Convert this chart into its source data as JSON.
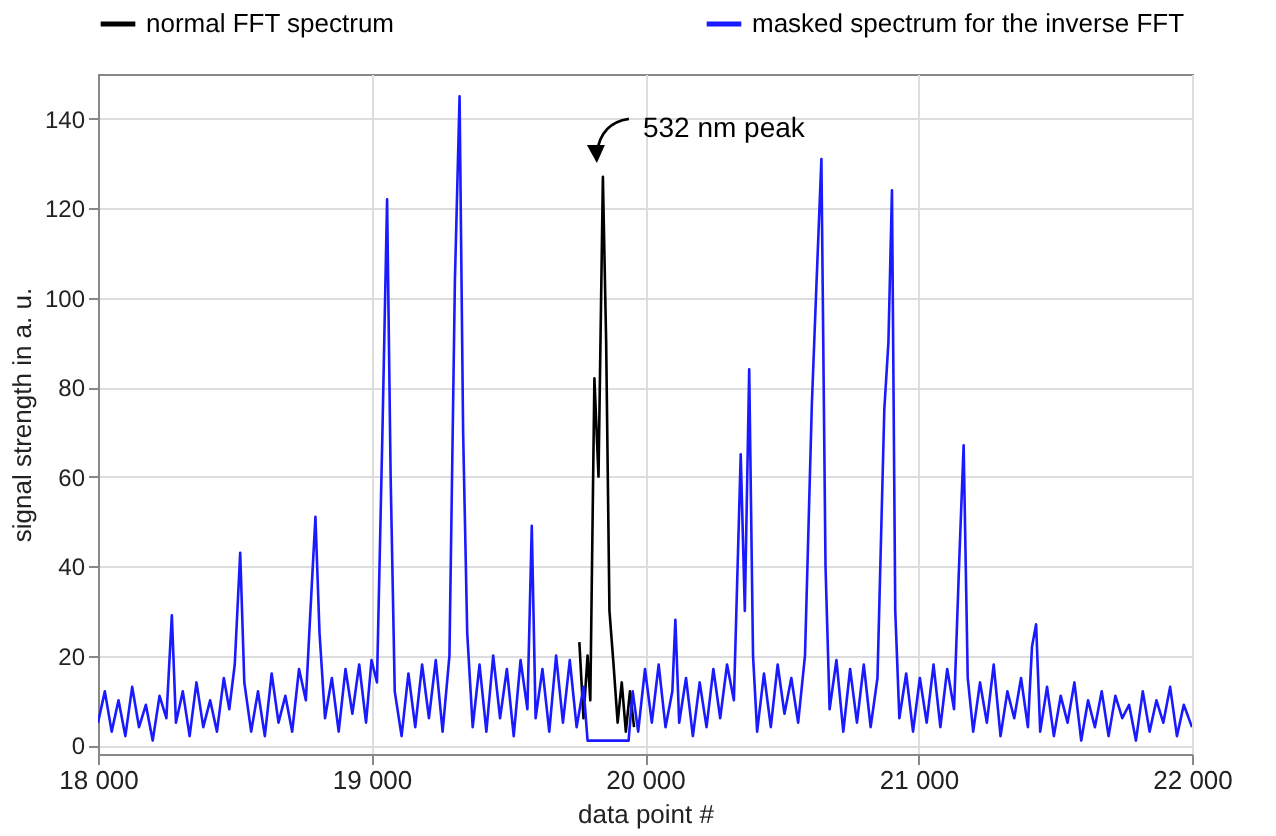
{
  "chart_data": {
    "type": "line",
    "xlabel": "data point #",
    "ylabel": "signal strength in a. u.",
    "xlim": [
      18000,
      22000
    ],
    "ylim": [
      -2,
      150
    ],
    "xticks": [
      {
        "value": 18000,
        "label": "18 000"
      },
      {
        "value": 19000,
        "label": "19 000"
      },
      {
        "value": 20000,
        "label": "20 000"
      },
      {
        "value": 21000,
        "label": "21 000"
      },
      {
        "value": 22000,
        "label": "22 000"
      }
    ],
    "yticks": [
      0,
      20,
      40,
      60,
      80,
      100,
      120,
      140
    ],
    "grid": true,
    "legend": "top",
    "line_style": "solid",
    "marker": "none",
    "annotations": [
      {
        "text": "532 nm peak",
        "x": 19846,
        "y": 127
      }
    ],
    "series": [
      {
        "name": "normal FFT spectrum",
        "color": "#000000",
        "x": [
          19760,
          19775,
          19790,
          19800,
          19815,
          19830,
          19846,
          19858,
          19870,
          19885,
          19900,
          19915,
          19930,
          19945,
          19960
        ],
        "values": [
          23,
          6,
          20,
          10,
          82,
          60,
          127,
          90,
          30,
          18,
          5,
          14,
          3,
          12,
          4
        ]
      },
      {
        "name": "masked spectrum for the inverse FFT",
        "color": "#1a1aff",
        "x": [
          18000,
          18025,
          18050,
          18075,
          18100,
          18125,
          18150,
          18175,
          18200,
          18225,
          18250,
          18270,
          18285,
          18310,
          18335,
          18360,
          18385,
          18410,
          18435,
          18460,
          18480,
          18500,
          18520,
          18535,
          18560,
          18585,
          18610,
          18635,
          18660,
          18685,
          18710,
          18735,
          18760,
          18775,
          18795,
          18810,
          18830,
          18855,
          18880,
          18905,
          18930,
          18955,
          18980,
          19000,
          19020,
          19040,
          19057,
          19070,
          19085,
          19110,
          19135,
          19160,
          19185,
          19210,
          19235,
          19260,
          19285,
          19305,
          19322,
          19335,
          19350,
          19370,
          19395,
          19420,
          19445,
          19470,
          19495,
          19520,
          19545,
          19570,
          19586,
          19600,
          19625,
          19650,
          19675,
          19700,
          19725,
          19750,
          19775,
          19790,
          19800,
          19850,
          19900,
          19940,
          19955,
          19975,
          20000,
          20025,
          20050,
          20075,
          20100,
          20111,
          20125,
          20150,
          20175,
          20200,
          20225,
          20250,
          20275,
          20300,
          20325,
          20350,
          20365,
          20381,
          20395,
          20410,
          20435,
          20460,
          20485,
          20510,
          20535,
          20560,
          20585,
          20610,
          20625,
          20645,
          20660,
          20675,
          20700,
          20725,
          20750,
          20775,
          20800,
          20825,
          20850,
          20875,
          20890,
          20903,
          20915,
          20930,
          20955,
          20980,
          21005,
          21030,
          21055,
          21080,
          21105,
          21130,
          21150,
          21165,
          21180,
          21200,
          21225,
          21250,
          21275,
          21300,
          21325,
          21350,
          21375,
          21400,
          21415,
          21430,
          21445,
          21470,
          21495,
          21520,
          21545,
          21570,
          21595,
          21620,
          21645,
          21670,
          21695,
          21720,
          21745,
          21770,
          21795,
          21820,
          21845,
          21870,
          21895,
          21920,
          21945,
          21970,
          22000
        ],
        "values": [
          5,
          12,
          3,
          10,
          2,
          13,
          4,
          9,
          1,
          11,
          6,
          29,
          5,
          12,
          2,
          14,
          4,
          10,
          3,
          15,
          8,
          18,
          43,
          14,
          3,
          12,
          2,
          16,
          5,
          11,
          3,
          17,
          10,
          28,
          51,
          25,
          6,
          15,
          3,
          17,
          7,
          18,
          5,
          19,
          14,
          70,
          122,
          60,
          12,
          2,
          16,
          4,
          18,
          6,
          19,
          3,
          20,
          104,
          145,
          70,
          25,
          4,
          18,
          3,
          20,
          6,
          17,
          2,
          19,
          8,
          49,
          6,
          17,
          3,
          20,
          5,
          19,
          4,
          13,
          1,
          1,
          1,
          1,
          1,
          12,
          3,
          17,
          5,
          18,
          4,
          12,
          28,
          5,
          15,
          2,
          14,
          4,
          17,
          6,
          18,
          10,
          65,
          30,
          84,
          20,
          3,
          16,
          4,
          18,
          7,
          15,
          5,
          20,
          76,
          100,
          131,
          40,
          8,
          19,
          3,
          17,
          5,
          18,
          4,
          15,
          75,
          90,
          124,
          30,
          6,
          16,
          3,
          15,
          5,
          18,
          4,
          17,
          8,
          43,
          67,
          15,
          3,
          14,
          5,
          18,
          2,
          12,
          6,
          15,
          4,
          22,
          27,
          3,
          13,
          2,
          11,
          5,
          14,
          1,
          10,
          4,
          12,
          2,
          11,
          6,
          9,
          1,
          12,
          3,
          10,
          5,
          13,
          2,
          9,
          4
        ]
      }
    ]
  }
}
